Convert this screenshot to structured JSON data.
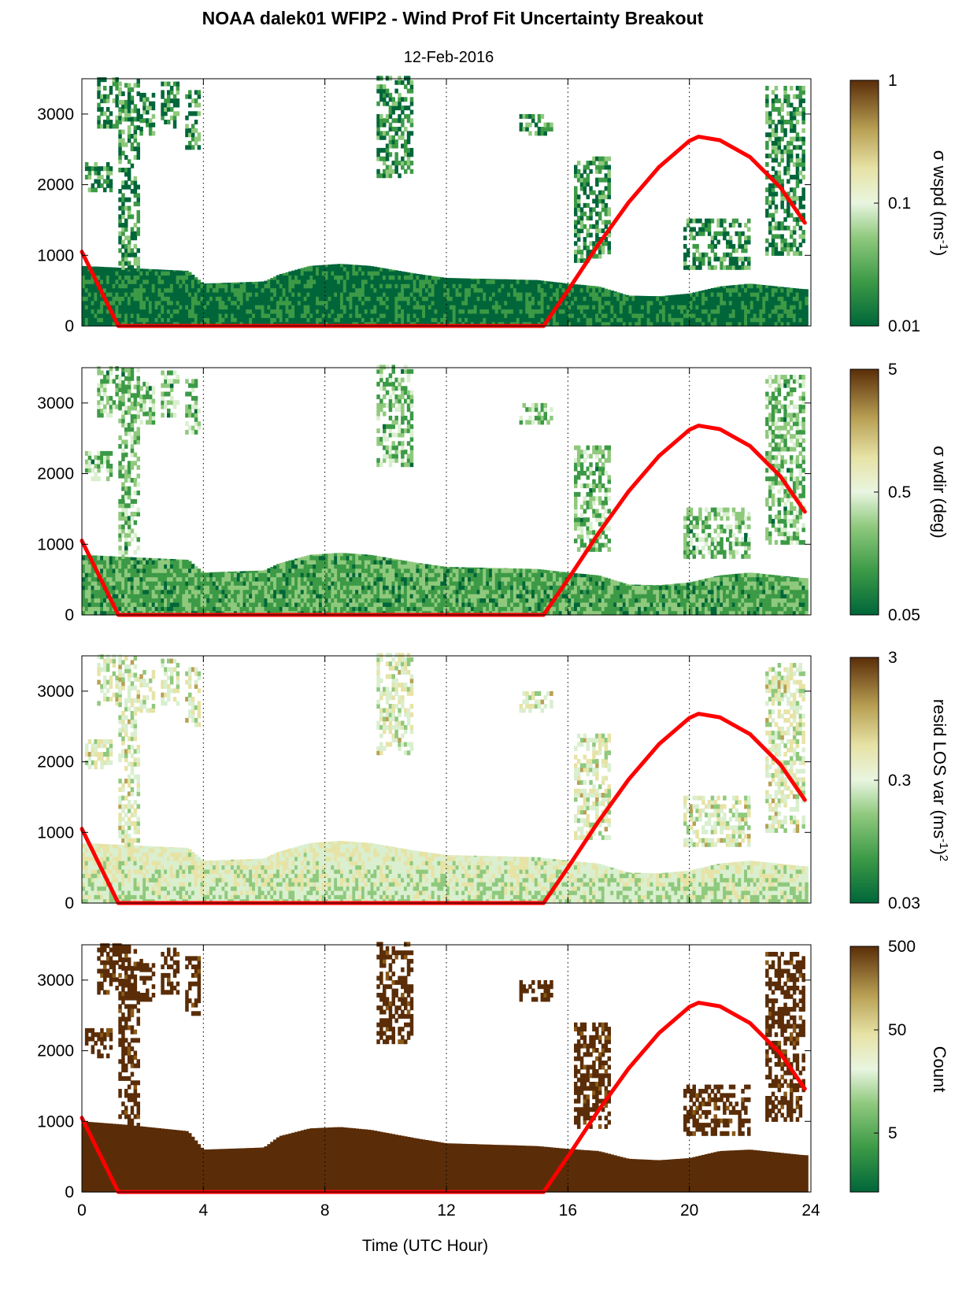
{
  "figure": {
    "title": "NOAA dalek01 WFIP2 - Wind Prof Fit Uncertainty Breakout",
    "subtitle": "12-Feb-2016",
    "xlabel": "Time (UTC Hour)"
  },
  "colors": {
    "solar_curve": "#ff0000",
    "colormap": [
      "#00663a",
      "#3c9a46",
      "#8fc97d",
      "#d9efcf",
      "#e7e3a6",
      "#b8a054",
      "#8a5a18",
      "#5a2d08"
    ]
  },
  "chart_data": [
    {
      "type": "heatmap",
      "panel": "sigma-wspd",
      "xlim": [
        0,
        24
      ],
      "ylim": [
        0,
        3500
      ],
      "xticks": [
        "0",
        "4",
        "8",
        "12",
        "16",
        "20",
        "24"
      ],
      "yticks": [
        "0",
        "1000",
        "2000",
        "3000"
      ],
      "xgrid": [
        4,
        8,
        12,
        16,
        20
      ],
      "colorbar": {
        "label": "σ wspd (ms",
        "label_sup": "-1",
        "label_tail": ")",
        "scale": "log",
        "ticks": [
          {
            "v": "1",
            "f": 1.0
          },
          {
            "v": "0.1",
            "f": 0.5
          },
          {
            "v": "0.01",
            "f": 0.0
          }
        ]
      },
      "solar_curve": [
        [
          0,
          1050
        ],
        [
          1.2,
          0
        ],
        [
          15.2,
          0
        ],
        [
          16,
          500
        ],
        [
          17,
          1150
        ],
        [
          18,
          1750
        ],
        [
          19,
          2250
        ],
        [
          20,
          2620
        ],
        [
          20.3,
          2680
        ],
        [
          21,
          2630
        ],
        [
          22,
          2390
        ],
        [
          23,
          1960
        ],
        [
          23.8,
          1460
        ]
      ],
      "low_layer_top": [
        [
          0,
          850
        ],
        [
          1.5,
          820
        ],
        [
          3.5,
          780
        ],
        [
          4,
          600
        ],
        [
          6,
          630
        ],
        [
          6.5,
          730
        ],
        [
          7.5,
          850
        ],
        [
          8.5,
          880
        ],
        [
          9.5,
          850
        ],
        [
          11,
          740
        ],
        [
          12,
          680
        ],
        [
          15,
          650
        ],
        [
          16,
          600
        ],
        [
          17,
          560
        ],
        [
          18,
          430
        ],
        [
          19,
          420
        ],
        [
          20,
          460
        ],
        [
          21,
          560
        ],
        [
          22,
          600
        ],
        [
          23.8,
          520
        ]
      ],
      "level": 0.08
    },
    {
      "type": "heatmap",
      "panel": "sigma-wdir",
      "xlim": [
        0,
        24
      ],
      "ylim": [
        0,
        3500
      ],
      "xticks": [
        "0",
        "4",
        "8",
        "12",
        "16",
        "20",
        "24"
      ],
      "yticks": [
        "0",
        "1000",
        "2000",
        "3000"
      ],
      "xgrid": [
        4,
        8,
        12,
        16,
        20
      ],
      "colorbar": {
        "label": "σ wdir (deg)",
        "label_sup": "",
        "label_tail": "",
        "scale": "log",
        "ticks": [
          {
            "v": "5",
            "f": 1.0
          },
          {
            "v": "0.5",
            "f": 0.5
          },
          {
            "v": "0.05",
            "f": 0.0
          }
        ]
      },
      "solar_curve": [
        [
          0,
          1050
        ],
        [
          1.2,
          0
        ],
        [
          15.2,
          0
        ],
        [
          16,
          500
        ],
        [
          17,
          1150
        ],
        [
          18,
          1750
        ],
        [
          19,
          2250
        ],
        [
          20,
          2620
        ],
        [
          20.3,
          2680
        ],
        [
          21,
          2630
        ],
        [
          22,
          2390
        ],
        [
          23,
          1960
        ],
        [
          23.8,
          1460
        ]
      ],
      "low_layer_top": [
        [
          0,
          850
        ],
        [
          1.5,
          820
        ],
        [
          3.5,
          780
        ],
        [
          4,
          600
        ],
        [
          6,
          630
        ],
        [
          6.5,
          730
        ],
        [
          7.5,
          850
        ],
        [
          8.5,
          880
        ],
        [
          9.5,
          850
        ],
        [
          11,
          740
        ],
        [
          12,
          680
        ],
        [
          15,
          650
        ],
        [
          16,
          600
        ],
        [
          17,
          560
        ],
        [
          18,
          430
        ],
        [
          19,
          420
        ],
        [
          20,
          460
        ],
        [
          21,
          560
        ],
        [
          22,
          600
        ],
        [
          23.8,
          520
        ]
      ],
      "level": 0.22
    },
    {
      "type": "heatmap",
      "panel": "resid-los-var",
      "xlim": [
        0,
        24
      ],
      "ylim": [
        0,
        3500
      ],
      "xticks": [
        "0",
        "4",
        "8",
        "12",
        "16",
        "20",
        "24"
      ],
      "yticks": [
        "0",
        "1000",
        "2000",
        "3000"
      ],
      "xgrid": [
        4,
        8,
        12,
        16,
        20
      ],
      "colorbar": {
        "label": "resid LOS var (ms",
        "label_sup": "-1",
        "label_tail": ")",
        "label_sup2": "2",
        "scale": "log",
        "ticks": [
          {
            "v": "3",
            "f": 1.0
          },
          {
            "v": "0.3",
            "f": 0.5
          },
          {
            "v": "0.03",
            "f": 0.0
          }
        ]
      },
      "solar_curve": [
        [
          0,
          1050
        ],
        [
          1.2,
          0
        ],
        [
          15.2,
          0
        ],
        [
          16,
          500
        ],
        [
          17,
          1150
        ],
        [
          18,
          1750
        ],
        [
          19,
          2250
        ],
        [
          20,
          2620
        ],
        [
          20.3,
          2680
        ],
        [
          21,
          2630
        ],
        [
          22,
          2390
        ],
        [
          23,
          1960
        ],
        [
          23.8,
          1460
        ]
      ],
      "low_layer_top": [
        [
          0,
          850
        ],
        [
          1.5,
          820
        ],
        [
          3.5,
          780
        ],
        [
          4,
          600
        ],
        [
          6,
          630
        ],
        [
          6.5,
          730
        ],
        [
          7.5,
          850
        ],
        [
          8.5,
          880
        ],
        [
          9.5,
          850
        ],
        [
          11,
          740
        ],
        [
          12,
          680
        ],
        [
          15,
          650
        ],
        [
          16,
          600
        ],
        [
          17,
          560
        ],
        [
          18,
          430
        ],
        [
          19,
          420
        ],
        [
          20,
          460
        ],
        [
          21,
          560
        ],
        [
          22,
          600
        ],
        [
          23.8,
          520
        ]
      ],
      "level": 0.4
    },
    {
      "type": "heatmap",
      "panel": "count",
      "xlim": [
        0,
        24
      ],
      "ylim": [
        0,
        3500
      ],
      "xticks": [
        "0",
        "4",
        "8",
        "12",
        "16",
        "20",
        "24"
      ],
      "yticks": [
        "0",
        "1000",
        "2000",
        "3000"
      ],
      "xgrid": [
        4,
        8,
        12,
        16,
        20
      ],
      "colorbar": {
        "label": "Count",
        "label_sup": "",
        "label_tail": "",
        "scale": "log",
        "ticks": [
          {
            "v": "500",
            "f": 1.0
          },
          {
            "v": "50",
            "f": 0.66
          },
          {
            "v": "5",
            "f": 0.24
          }
        ]
      },
      "solar_curve": [
        [
          0,
          1050
        ],
        [
          1.2,
          0
        ],
        [
          15.2,
          0
        ],
        [
          16,
          500
        ],
        [
          17,
          1150
        ],
        [
          18,
          1750
        ],
        [
          19,
          2250
        ],
        [
          20,
          2620
        ],
        [
          20.3,
          2680
        ],
        [
          21,
          2630
        ],
        [
          22,
          2390
        ],
        [
          23,
          1960
        ],
        [
          23.8,
          1460
        ]
      ],
      "low_layer_top": [
        [
          0,
          1000
        ],
        [
          1.5,
          950
        ],
        [
          3.5,
          860
        ],
        [
          4,
          600
        ],
        [
          6,
          630
        ],
        [
          6.5,
          790
        ],
        [
          7.5,
          900
        ],
        [
          8.5,
          920
        ],
        [
          9.5,
          880
        ],
        [
          11,
          760
        ],
        [
          12,
          690
        ],
        [
          15,
          650
        ],
        [
          16,
          610
        ],
        [
          17,
          580
        ],
        [
          18,
          470
        ],
        [
          19,
          450
        ],
        [
          20,
          480
        ],
        [
          21,
          580
        ],
        [
          22,
          600
        ],
        [
          23.8,
          520
        ]
      ],
      "level": 0.95
    }
  ]
}
